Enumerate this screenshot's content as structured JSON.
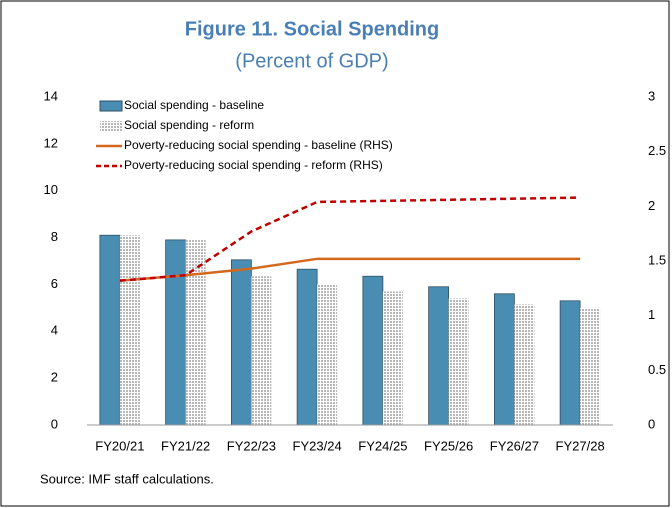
{
  "chart_data": {
    "type": "bar",
    "title": "Figure 11. Social Spending",
    "subtitle": "(Percent of GDP)",
    "categories": [
      "FY20/21",
      "FY21/22",
      "FY22/23",
      "FY23/24",
      "FY24/25",
      "FY25/26",
      "FY26/27",
      "FY27/28"
    ],
    "series": [
      {
        "name": "Social spending - baseline",
        "type": "bar",
        "color": "#4a8db3",
        "values": [
          8.1,
          7.9,
          7.05,
          6.65,
          6.35,
          5.9,
          5.6,
          5.3
        ]
      },
      {
        "name": "Social spending - reform",
        "type": "bar",
        "color": "#b8b8b8",
        "values": [
          8.1,
          7.9,
          6.35,
          6.0,
          5.7,
          5.4,
          5.15,
          5.0
        ]
      },
      {
        "name": "Poverty-reducing social spending - baseline (RHS)",
        "type": "line",
        "axis": "y2",
        "color": "#d2691e",
        "dash": false,
        "values": [
          1.32,
          1.37,
          1.43,
          1.52,
          1.52,
          1.52,
          1.52,
          1.52
        ]
      },
      {
        "name": "Poverty-reducing social spending - reform (RHS)",
        "type": "line",
        "axis": "y2",
        "color": "#c00000",
        "dash": true,
        "values": [
          1.32,
          1.37,
          1.77,
          2.04,
          2.05,
          2.06,
          2.07,
          2.08
        ]
      }
    ],
    "ylim": [
      0,
      14
    ],
    "yticks": [
      0,
      2,
      4,
      6,
      8,
      10,
      12,
      14
    ],
    "y2lim": [
      0,
      3
    ],
    "y2ticks": [
      0,
      0.5,
      1,
      1.5,
      2,
      2.5,
      3
    ],
    "legend": "upper left",
    "source": "Source: IMF staff calculations."
  }
}
